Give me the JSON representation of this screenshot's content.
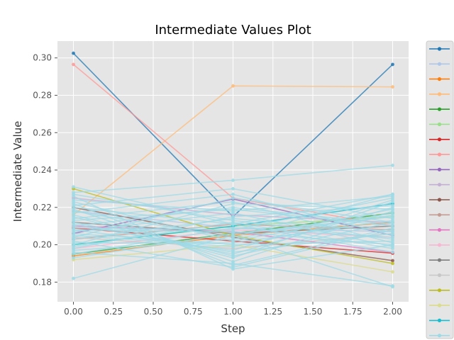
{
  "chart_data": {
    "type": "line",
    "title": "Intermediate Values Plot",
    "xlabel": "Step",
    "ylabel": "Intermediate Value",
    "xlim": [
      -0.1,
      2.1
    ],
    "ylim": [
      0.1695,
      0.309
    ],
    "x_ticks": [
      "0.00",
      "0.25",
      "0.50",
      "0.75",
      "1.00",
      "1.25",
      "1.50",
      "1.75",
      "2.00"
    ],
    "y_ticks": [
      "0.18",
      "0.20",
      "0.22",
      "0.24",
      "0.26",
      "0.28",
      "0.30"
    ],
    "grid": true,
    "background": "#e5e5e5",
    "legend": {
      "placement": "outside-right",
      "entries_count": 20,
      "labels_visible": false
    },
    "x": [
      0,
      1,
      2
    ],
    "series": [
      {
        "color": "#1f77b4",
        "values": [
          0.3025,
          0.215,
          0.2965
        ]
      },
      {
        "color": "#aec7e8",
        "values": [
          0.218,
          0.209,
          0.207
        ]
      },
      {
        "color": "#ff7f0e",
        "values": [
          0.194,
          0.205,
          0.212
        ]
      },
      {
        "color": "#ffbb78",
        "values": [
          0.216,
          0.285,
          0.2845
        ]
      },
      {
        "color": "#2ca02c",
        "values": [
          0.195,
          0.206,
          0.217
        ]
      },
      {
        "color": "#98df8a",
        "values": [
          0.2,
          0.21,
          0.215
        ]
      },
      {
        "color": "#d62728",
        "values": [
          0.209,
          0.202,
          0.1955
        ]
      },
      {
        "color": "#ff9896",
        "values": [
          0.2965,
          0.225,
          0.21
        ]
      },
      {
        "color": "#9467bd",
        "values": [
          0.206,
          0.2245,
          0.205
        ]
      },
      {
        "color": "#c5b0d5",
        "values": [
          0.225,
          0.216,
          0.212
        ]
      },
      {
        "color": "#8c564b",
        "values": [
          0.22,
          0.204,
          0.1915
        ]
      },
      {
        "color": "#c49c94",
        "values": [
          0.203,
          0.211,
          0.208
        ]
      },
      {
        "color": "#e377c2",
        "values": [
          0.21,
          0.207,
          0.196
        ]
      },
      {
        "color": "#f7b6d2",
        "values": [
          0.198,
          0.208,
          0.204
        ]
      },
      {
        "color": "#7f7f7f",
        "values": [
          0.212,
          0.206,
          0.21
        ]
      },
      {
        "color": "#c7c7c7",
        "values": [
          0.204,
          0.198,
          0.206
        ]
      },
      {
        "color": "#bcbd22",
        "values": [
          0.23,
          0.205,
          0.19
        ]
      },
      {
        "color": "#dbdb8d",
        "values": [
          0.192,
          0.2,
          0.1855
        ]
      },
      {
        "color": "#17becf",
        "values": [
          0.2,
          0.21,
          0.222
        ]
      },
      {
        "color": "#9edae5",
        "values": [
          0.182,
          0.205,
          0.1775
        ]
      },
      {
        "color": "#9edae5",
        "values": [
          0.231,
          0.211,
          0.227
        ]
      },
      {
        "color": "#9edae5",
        "values": [
          0.228,
          0.2345,
          0.2425
        ]
      },
      {
        "color": "#9edae5",
        "values": [
          0.226,
          0.187,
          0.2
        ]
      },
      {
        "color": "#9edae5",
        "values": [
          0.224,
          0.218,
          0.226
        ]
      },
      {
        "color": "#9edae5",
        "values": [
          0.222,
          0.189,
          0.209
        ]
      },
      {
        "color": "#9edae5",
        "values": [
          0.221,
          0.23,
          0.214
        ]
      },
      {
        "color": "#9edae5",
        "values": [
          0.219,
          0.191,
          0.218
        ]
      },
      {
        "color": "#9edae5",
        "values": [
          0.217,
          0.227,
          0.205
        ]
      },
      {
        "color": "#9edae5",
        "values": [
          0.215,
          0.193,
          0.223
        ]
      },
      {
        "color": "#9edae5",
        "values": [
          0.214,
          0.223,
          0.201
        ]
      },
      {
        "color": "#9edae5",
        "values": [
          0.212,
          0.195,
          0.22
        ]
      },
      {
        "color": "#9edae5",
        "values": [
          0.21,
          0.22,
          0.211
        ]
      },
      {
        "color": "#9edae5",
        "values": [
          0.208,
          0.197,
          0.224
        ]
      },
      {
        "color": "#9edae5",
        "values": [
          0.207,
          0.217,
          0.199
        ]
      },
      {
        "color": "#9edae5",
        "values": [
          0.205,
          0.199,
          0.216
        ]
      },
      {
        "color": "#9edae5",
        "values": [
          0.203,
          0.214,
          0.207
        ]
      },
      {
        "color": "#9edae5",
        "values": [
          0.201,
          0.201,
          0.213
        ]
      },
      {
        "color": "#9edae5",
        "values": [
          0.199,
          0.212,
          0.198
        ]
      },
      {
        "color": "#9edae5",
        "values": [
          0.197,
          0.203,
          0.219
        ]
      },
      {
        "color": "#9edae5",
        "values": [
          0.195,
          0.209,
          0.204
        ]
      },
      {
        "color": "#9edae5",
        "values": [
          0.193,
          0.206,
          0.215
        ]
      },
      {
        "color": "#9edae5",
        "values": [
          0.213,
          0.219,
          0.21
        ]
      },
      {
        "color": "#9edae5",
        "values": [
          0.211,
          0.196,
          0.206
        ]
      },
      {
        "color": "#9edae5",
        "values": [
          0.209,
          0.208,
          0.225
        ]
      },
      {
        "color": "#9edae5",
        "values": [
          0.206,
          0.2,
          0.202
        ]
      },
      {
        "color": "#9edae5",
        "values": [
          0.204,
          0.225,
          0.212
        ]
      },
      {
        "color": "#9edae5",
        "values": [
          0.202,
          0.188,
          0.208
        ]
      },
      {
        "color": "#9edae5",
        "values": [
          0.22,
          0.211,
          0.196
        ]
      },
      {
        "color": "#9edae5",
        "values": [
          0.223,
          0.202,
          0.217
        ]
      },
      {
        "color": "#9edae5",
        "values": [
          0.198,
          0.215,
          0.221
        ]
      },
      {
        "color": "#9edae5",
        "values": [
          0.196,
          0.19,
          0.178
        ]
      },
      {
        "color": "#9edae5",
        "values": [
          0.218,
          0.204,
          0.227
        ]
      },
      {
        "color": "#9edae5",
        "values": [
          0.227,
          0.213,
          0.203
        ]
      },
      {
        "color": "#9edae5",
        "values": [
          0.2,
          0.222,
          0.219
        ]
      },
      {
        "color": "#9edae5",
        "values": [
          0.216,
          0.194,
          0.212
        ]
      },
      {
        "color": "#9edae5",
        "values": [
          0.208,
          0.207,
          0.2
        ]
      }
    ]
  }
}
